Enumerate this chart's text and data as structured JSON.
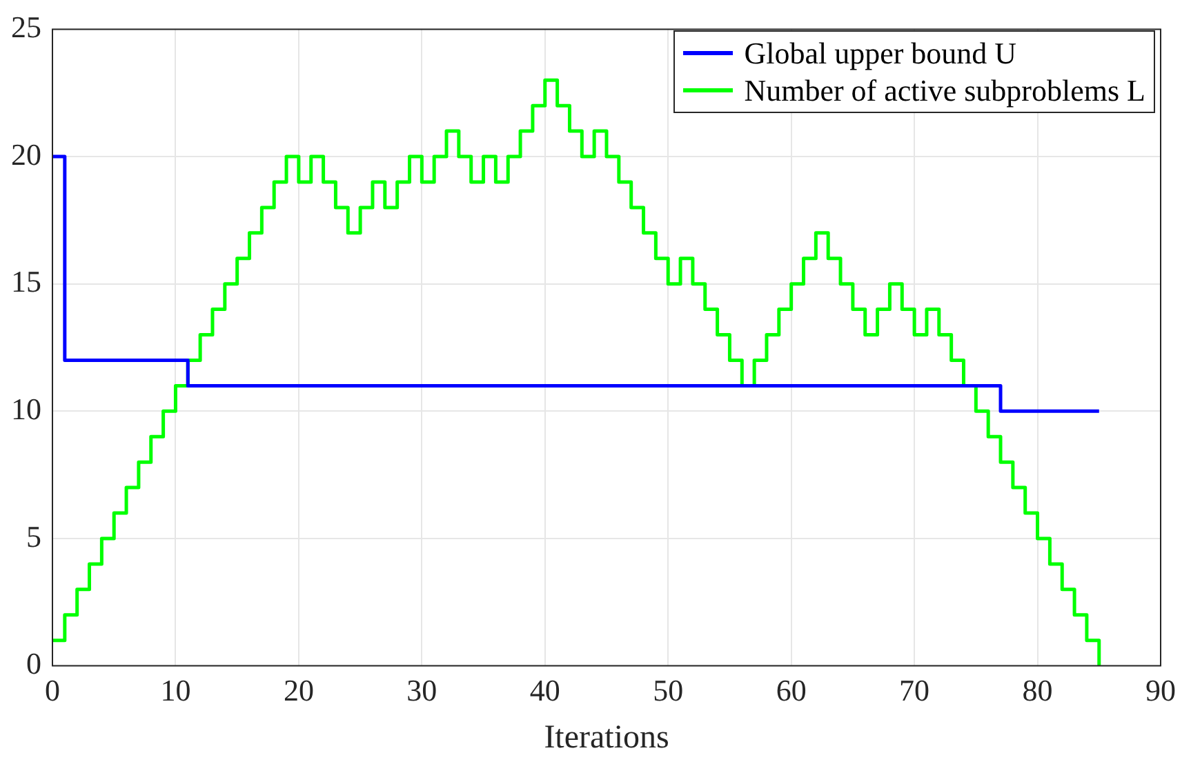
{
  "chart_data": {
    "type": "step",
    "xlabel": "Iterations",
    "xlim": [
      0,
      90
    ],
    "xticks": [
      0,
      10,
      20,
      30,
      40,
      50,
      60,
      70,
      80,
      90
    ],
    "ylim": [
      0,
      25
    ],
    "yticks": [
      0,
      5,
      10,
      15,
      20,
      25
    ],
    "grid": true,
    "legend": "top right",
    "series": [
      {
        "name": "Global upper bound U",
        "color": "#0000ff",
        "x": [
          0,
          1,
          11,
          77,
          85
        ],
        "values": [
          20,
          12,
          11,
          10,
          10
        ]
      },
      {
        "name": "Number of active subproblems L",
        "color": "#00ff00",
        "x": [
          0,
          1,
          2,
          3,
          4,
          5,
          6,
          7,
          8,
          9,
          10,
          11,
          12,
          13,
          14,
          15,
          16,
          17,
          18,
          19,
          20,
          21,
          22,
          23,
          24,
          25,
          26,
          27,
          28,
          29,
          30,
          31,
          32,
          33,
          34,
          35,
          36,
          37,
          38,
          39,
          40,
          41,
          42,
          43,
          44,
          45,
          46,
          47,
          48,
          49,
          50,
          51,
          52,
          53,
          54,
          55,
          56,
          57,
          58,
          59,
          60,
          61,
          62,
          63,
          64,
          65,
          66,
          67,
          68,
          69,
          70,
          71,
          72,
          73,
          74,
          75,
          76,
          77,
          78,
          79,
          80,
          81,
          82,
          83,
          84,
          85
        ],
        "values": [
          1,
          2,
          3,
          4,
          5,
          6,
          7,
          8,
          9,
          10,
          11,
          12,
          13,
          14,
          15,
          16,
          17,
          18,
          19,
          20,
          19,
          20,
          19,
          18,
          17,
          18,
          19,
          18,
          19,
          20,
          19,
          20,
          21,
          20,
          19,
          20,
          19,
          20,
          21,
          22,
          23,
          22,
          21,
          20,
          21,
          20,
          19,
          18,
          17,
          16,
          15,
          16,
          15,
          14,
          13,
          12,
          11,
          12,
          13,
          14,
          15,
          16,
          17,
          16,
          15,
          14,
          13,
          14,
          15,
          14,
          13,
          14,
          13,
          12,
          11,
          10,
          9,
          8,
          7,
          6,
          5,
          4,
          3,
          2,
          1,
          0
        ]
      }
    ]
  }
}
